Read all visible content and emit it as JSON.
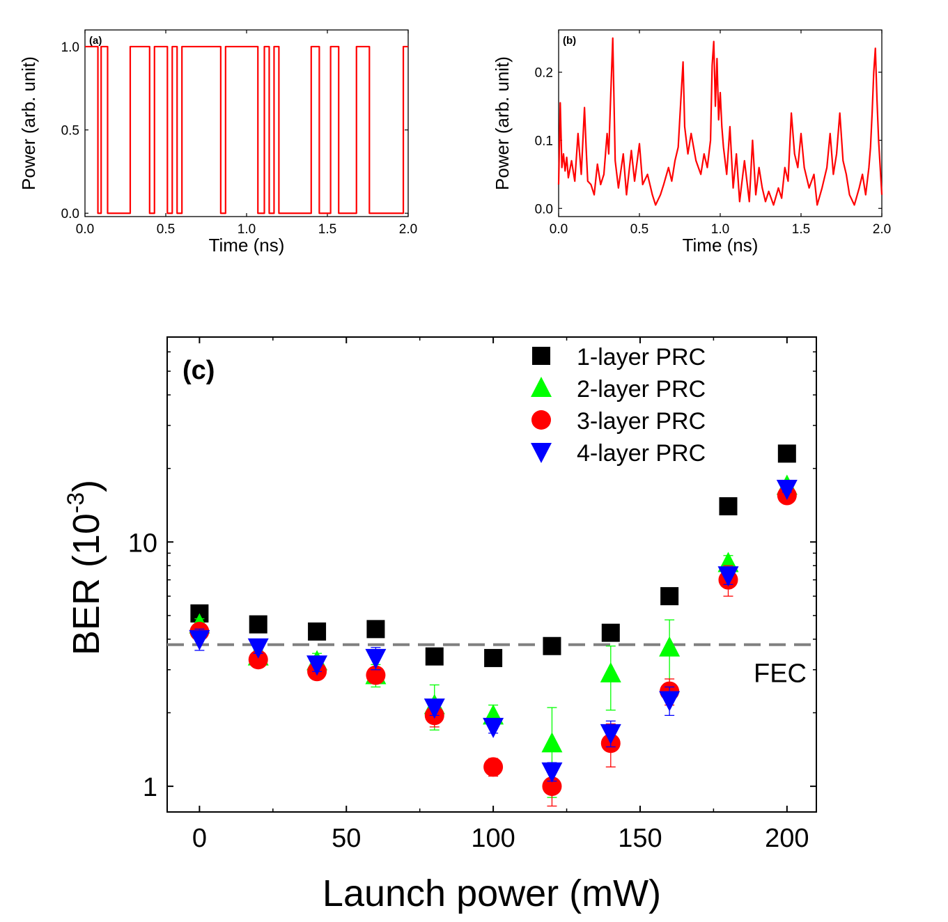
{
  "chart_data": [
    {
      "id": "a",
      "type": "line",
      "panel_label": "(a)",
      "xlabel": "Time (ns)",
      "ylabel": "Power (arb. unit)",
      "xlim": [
        0.0,
        2.0
      ],
      "ylim": [
        -0.02,
        1.1
      ],
      "xticks": [
        "0.0",
        "0.5",
        "1.0",
        "1.5",
        "2.0"
      ],
      "xtick_values": [
        0.0,
        0.5,
        1.0,
        1.5,
        2.0
      ],
      "yticks": [
        "0.0",
        "0.5",
        "1.0"
      ],
      "ytick_values": [
        0.0,
        0.5,
        1.0
      ],
      "series": [
        {
          "color": "#ff0000",
          "step": true,
          "x": [
            0.0,
            0.08,
            0.1,
            0.14,
            0.2,
            0.28,
            0.4,
            0.43,
            0.51,
            0.54,
            0.57,
            0.6,
            0.67,
            0.84,
            0.87,
            1.07,
            1.11,
            1.14,
            1.17,
            1.2,
            1.24,
            1.4,
            1.45,
            1.52,
            1.57,
            1.68,
            1.76,
            1.87,
            1.97,
            2.0
          ],
          "values": [
            1,
            0,
            1,
            0,
            0,
            1,
            0,
            1,
            0,
            1,
            0,
            1,
            1,
            0,
            1,
            0,
            1,
            0,
            1,
            0,
            0,
            1,
            0,
            1,
            0,
            1,
            0,
            0,
            1,
            1
          ]
        }
      ]
    },
    {
      "id": "b",
      "type": "line",
      "panel_label": "(b)",
      "xlabel": "Time (ns)",
      "ylabel": "Power (arb. unit)",
      "xlim": [
        0.0,
        2.0
      ],
      "ylim": [
        -0.012,
        0.262
      ],
      "xticks": [
        "0.0",
        "0.5",
        "1.0",
        "1.5",
        "2.0"
      ],
      "xtick_values": [
        0.0,
        0.5,
        1.0,
        1.5,
        2.0
      ],
      "yticks": [
        "0.0",
        "0.1",
        "0.2"
      ],
      "ytick_values": [
        0.0,
        0.1,
        0.2
      ],
      "series": [
        {
          "color": "#ff0000",
          "x": [
            0.0,
            0.01,
            0.02,
            0.03,
            0.04,
            0.05,
            0.06,
            0.08,
            0.1,
            0.12,
            0.14,
            0.16,
            0.17,
            0.18,
            0.2,
            0.22,
            0.24,
            0.26,
            0.28,
            0.3,
            0.31,
            0.32,
            0.335,
            0.34,
            0.35,
            0.37,
            0.4,
            0.42,
            0.45,
            0.47,
            0.5,
            0.52,
            0.55,
            0.58,
            0.6,
            0.63,
            0.65,
            0.68,
            0.7,
            0.72,
            0.74,
            0.76,
            0.77,
            0.78,
            0.8,
            0.82,
            0.85,
            0.88,
            0.9,
            0.92,
            0.94,
            0.95,
            0.96,
            0.97,
            0.98,
            0.99,
            1.0,
            1.01,
            1.02,
            1.04,
            1.06,
            1.08,
            1.1,
            1.12,
            1.15,
            1.18,
            1.2,
            1.22,
            1.24,
            1.26,
            1.28,
            1.3,
            1.33,
            1.36,
            1.38,
            1.4,
            1.42,
            1.44,
            1.46,
            1.48,
            1.5,
            1.52,
            1.55,
            1.58,
            1.6,
            1.63,
            1.66,
            1.68,
            1.7,
            1.72,
            1.74,
            1.76,
            1.78,
            1.8,
            1.83,
            1.86,
            1.88,
            1.9,
            1.92,
            1.93,
            1.94,
            1.95,
            1.96,
            1.97,
            1.98,
            1.99,
            2.0
          ],
          "values": [
            0.035,
            0.155,
            0.06,
            0.08,
            0.055,
            0.075,
            0.045,
            0.07,
            0.04,
            0.11,
            0.05,
            0.148,
            0.09,
            0.04,
            0.035,
            0.02,
            0.065,
            0.035,
            0.05,
            0.11,
            0.08,
            0.15,
            0.25,
            0.19,
            0.07,
            0.03,
            0.08,
            0.02,
            0.085,
            0.04,
            0.095,
            0.035,
            0.05,
            0.02,
            0.005,
            0.02,
            0.035,
            0.06,
            0.04,
            0.07,
            0.09,
            0.175,
            0.215,
            0.12,
            0.08,
            0.11,
            0.07,
            0.05,
            0.08,
            0.06,
            0.1,
            0.21,
            0.245,
            0.15,
            0.22,
            0.13,
            0.17,
            0.12,
            0.09,
            0.05,
            0.12,
            0.03,
            0.08,
            0.01,
            0.07,
            0.01,
            0.1,
            0.02,
            0.06,
            0.03,
            0.01,
            0.025,
            0.005,
            0.03,
            0.015,
            0.06,
            0.04,
            0.14,
            0.08,
            0.06,
            0.11,
            0.06,
            0.03,
            0.05,
            0.005,
            0.03,
            0.06,
            0.11,
            0.05,
            0.08,
            0.14,
            0.07,
            0.05,
            0.02,
            0.005,
            0.03,
            0.05,
            0.02,
            0.06,
            0.09,
            0.14,
            0.2,
            0.235,
            0.16,
            0.1,
            0.06,
            0.02
          ]
        }
      ]
    },
    {
      "id": "c",
      "type": "scatter",
      "panel_label": "(c)",
      "xlabel": "Launch power (mW)",
      "ylabel": "BER (10",
      "ylabel_sup": "-3",
      "ylabel_tail": ")",
      "xlim": [
        -11,
        210
      ],
      "ylim_log": [
        0.785,
        69
      ],
      "yscale": "log",
      "xticks": [
        "0",
        "50",
        "100",
        "150",
        "200"
      ],
      "xtick_values": [
        0,
        50,
        100,
        150,
        200
      ],
      "yticks": [
        "1",
        "10"
      ],
      "ytick_values": [
        1,
        10
      ],
      "legend_position": "top-right",
      "threshold": {
        "value": 3.8,
        "label": "FEC",
        "color": "#808080"
      },
      "series": [
        {
          "name": "1-layer PRC",
          "marker": "square",
          "color": "#000000",
          "x": [
            0,
            20,
            40,
            60,
            80,
            100,
            120,
            140,
            160,
            180,
            200
          ],
          "values": [
            5.1,
            4.6,
            4.3,
            4.4,
            3.4,
            3.35,
            3.75,
            4.25,
            6.0,
            14.0,
            23.0
          ],
          "err": [
            0.12,
            0.12,
            0.2,
            0.15,
            0.2,
            0.15,
            0.1,
            0.3,
            0.15,
            0.4,
            0.5
          ]
        },
        {
          "name": "2-layer PRC",
          "marker": "triangle-up",
          "color": "#00ff00",
          "x": [
            0,
            20,
            40,
            60,
            80,
            100,
            120,
            140,
            160,
            180,
            200
          ],
          "values": [
            4.6,
            3.4,
            3.25,
            2.85,
            2.15,
            1.95,
            1.5,
            2.9,
            3.7,
            8.2,
            17.0
          ],
          "err": [
            0.25,
            0.2,
            0.25,
            0.3,
            0.45,
            0.2,
            0.6,
            0.85,
            1.1,
            0.6,
            0.8
          ]
        },
        {
          "name": "3-layer PRC",
          "marker": "circle",
          "color": "#ff0000",
          "x": [
            0,
            20,
            40,
            60,
            80,
            100,
            120,
            140,
            160,
            180,
            200
          ],
          "values": [
            4.3,
            3.3,
            2.95,
            2.85,
            1.95,
            1.2,
            1.0,
            1.5,
            2.45,
            7.0,
            15.5
          ],
          "err": [
            0.25,
            0.2,
            0.2,
            0.2,
            0.2,
            0.1,
            0.17,
            0.3,
            0.3,
            1.0,
            0.5
          ]
        },
        {
          "name": "4-layer PRC",
          "marker": "triangle-down",
          "color": "#0000ff",
          "x": [
            0,
            20,
            40,
            60,
            80,
            100,
            120,
            140,
            160,
            180,
            200
          ],
          "values": [
            4.0,
            3.7,
            3.15,
            3.35,
            2.1,
            1.75,
            1.15,
            1.65,
            2.25,
            7.3,
            16.5
          ],
          "err": [
            0.4,
            0.2,
            0.2,
            0.35,
            0.15,
            0.1,
            0.1,
            0.2,
            0.3,
            0.6,
            0.5
          ]
        }
      ]
    }
  ]
}
